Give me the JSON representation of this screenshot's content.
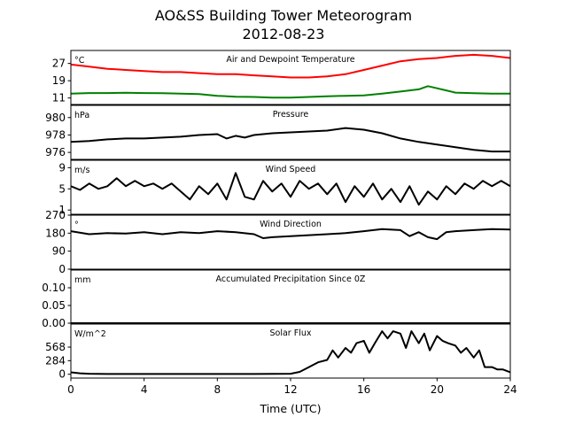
{
  "figure": {
    "title": "AO&SS Building Tower Meteorogram",
    "subtitle": "2012-08-23",
    "xlabel": "Time (UTC)"
  },
  "chart_data": [
    {
      "type": "line",
      "title": "Air and Dewpoint Temperature",
      "unit": "°C",
      "xlim": [
        0,
        24
      ],
      "ylim": [
        8,
        33
      ],
      "yticks": [
        "11",
        "19",
        "27"
      ],
      "series": [
        {
          "color": "#ff0000",
          "x": [
            0,
            1,
            2,
            3,
            4,
            5,
            6,
            7,
            8,
            9,
            10,
            11,
            12,
            13,
            14,
            15,
            16,
            17,
            18,
            19,
            20,
            21,
            22,
            23,
            24
          ],
          "y": [
            26.5,
            25.5,
            24.5,
            24,
            23.5,
            23,
            23,
            22.5,
            22,
            22,
            21.5,
            21,
            20.5,
            20.5,
            21,
            22,
            24,
            26,
            28,
            29,
            29.5,
            30.5,
            31,
            30.5,
            29.5
          ]
        },
        {
          "color": "#008000",
          "x": [
            0,
            1,
            2,
            3,
            4,
            5,
            6,
            7,
            8,
            9,
            10,
            11,
            12,
            13,
            14,
            15,
            16,
            17,
            18,
            19,
            19.5,
            20,
            20.5,
            21,
            22,
            23,
            24
          ],
          "y": [
            13,
            13.3,
            13.3,
            13.4,
            13.3,
            13.2,
            13,
            12.8,
            12,
            11.6,
            11.5,
            11.2,
            11.2,
            11.5,
            11.8,
            12,
            12.2,
            13,
            14,
            15,
            16.5,
            15.5,
            14.5,
            13.5,
            13.2,
            13,
            13
          ]
        }
      ]
    },
    {
      "type": "line",
      "title": "Pressure",
      "unit": "hPa",
      "xlim": [
        0,
        24
      ],
      "ylim": [
        975.2,
        981.4
      ],
      "yticks": [
        "976",
        "978",
        "980"
      ],
      "series": [
        {
          "color": "#000000",
          "x": [
            0,
            1,
            2,
            3,
            4,
            5,
            6,
            7,
            8,
            8.5,
            9,
            9.5,
            10,
            11,
            12,
            13,
            14,
            15,
            16,
            17,
            18,
            19,
            20,
            21,
            22,
            23,
            24
          ],
          "y": [
            977.2,
            977.3,
            977.5,
            977.6,
            977.6,
            977.7,
            977.8,
            978.0,
            978.1,
            977.6,
            977.9,
            977.7,
            978.0,
            978.2,
            978.3,
            978.4,
            978.5,
            978.8,
            978.6,
            978.2,
            977.6,
            977.2,
            976.9,
            976.6,
            976.3,
            976.1,
            976.1
          ]
        }
      ]
    },
    {
      "type": "line",
      "title": "Wind Speed",
      "unit": "m/s",
      "xlim": [
        0,
        24
      ],
      "ylim": [
        0.2,
        10.4
      ],
      "yticks": [
        "1",
        "5",
        "9"
      ],
      "series": [
        {
          "color": "#000000",
          "x": [
            0,
            0.5,
            1,
            1.5,
            2,
            2.5,
            3,
            3.5,
            4,
            4.5,
            5,
            5.5,
            6,
            6.5,
            7,
            7.5,
            8,
            8.5,
            9,
            9.5,
            10,
            10.5,
            11,
            11.5,
            12,
            12.5,
            13,
            13.5,
            14,
            14.5,
            15,
            15.5,
            16,
            16.5,
            17,
            17.5,
            18,
            18.5,
            19,
            19.5,
            20,
            20.5,
            21,
            21.5,
            22,
            22.5,
            23,
            23.5,
            24
          ],
          "y": [
            5.5,
            4.8,
            6.0,
            5.0,
            5.5,
            7.0,
            5.5,
            6.5,
            5.5,
            6.0,
            5.0,
            6.0,
            4.5,
            3.0,
            5.5,
            4.0,
            6.0,
            3.0,
            8.0,
            3.5,
            3.0,
            6.5,
            4.5,
            6.0,
            3.5,
            6.5,
            5.0,
            6.0,
            4.0,
            6.0,
            2.5,
            5.5,
            3.5,
            6.0,
            3.0,
            5.0,
            2.5,
            5.5,
            2.0,
            4.5,
            3.0,
            5.5,
            4.0,
            6.0,
            5.0,
            6.5,
            5.5,
            6.5,
            5.5
          ]
        }
      ]
    },
    {
      "type": "line",
      "title": "Wind Direction",
      "unit": "°",
      "xlim": [
        0,
        24
      ],
      "ylim": [
        0,
        270
      ],
      "yticks": [
        "0",
        "90",
        "180",
        "270"
      ],
      "series": [
        {
          "color": "#000000",
          "x": [
            0,
            1,
            2,
            3,
            4,
            5,
            6,
            7,
            8,
            9,
            10,
            10.5,
            11,
            12,
            13,
            14,
            15,
            16,
            17,
            18,
            18.5,
            19,
            19.5,
            20,
            20.5,
            21,
            22,
            23,
            24
          ],
          "y": [
            190,
            175,
            180,
            178,
            185,
            175,
            185,
            180,
            190,
            185,
            175,
            155,
            160,
            165,
            170,
            175,
            180,
            190,
            200,
            195,
            165,
            185,
            160,
            150,
            185,
            190,
            195,
            200,
            198
          ]
        }
      ]
    },
    {
      "type": "line",
      "title": "Accumulated Precipitation Since 0Z",
      "unit": "mm",
      "xlim": [
        0,
        24
      ],
      "ylim": [
        0,
        0.15
      ],
      "yticks": [
        "0.00",
        "0.05",
        "0.10"
      ],
      "series": [
        {
          "color": "#000000",
          "x": [
            0,
            24
          ],
          "y": [
            0,
            0
          ]
        }
      ]
    },
    {
      "type": "line",
      "title": "Solar Flux",
      "unit": "W/m^2",
      "xlim": [
        0,
        24
      ],
      "ylim": [
        -80,
        1050
      ],
      "yticks": [
        "0",
        "284",
        "568"
      ],
      "series": [
        {
          "color": "#000000",
          "x": [
            0,
            0.5,
            1,
            2,
            4,
            6,
            8,
            10,
            12,
            12.5,
            13,
            13.5,
            14,
            14.3,
            14.6,
            15,
            15.3,
            15.6,
            16,
            16.3,
            16.6,
            17,
            17.3,
            17.6,
            18,
            18.3,
            18.6,
            19,
            19.3,
            19.6,
            20,
            20.3,
            20.6,
            21,
            21.3,
            21.6,
            22,
            22.3,
            22.6,
            23,
            23.3,
            23.6,
            24
          ],
          "y": [
            40,
            20,
            10,
            5,
            5,
            5,
            5,
            5,
            10,
            50,
            150,
            250,
            300,
            500,
            350,
            550,
            450,
            650,
            700,
            450,
            650,
            900,
            750,
            900,
            850,
            550,
            900,
            650,
            850,
            500,
            800,
            700,
            650,
            600,
            450,
            550,
            350,
            500,
            150,
            150,
            100,
            100,
            40
          ]
        }
      ]
    }
  ],
  "xaxis": {
    "ticks": [
      "0",
      "4",
      "8",
      "12",
      "16",
      "20",
      "24"
    ]
  }
}
